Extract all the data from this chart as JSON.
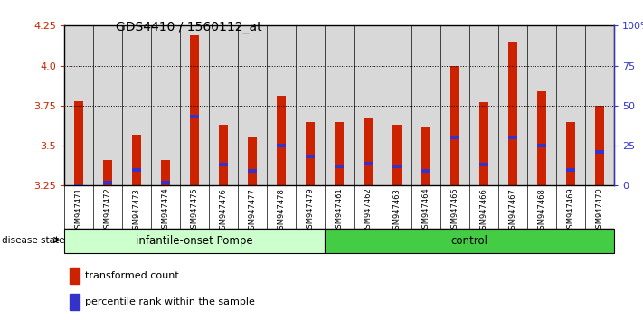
{
  "title": "GDS4410 / 1560112_at",
  "samples": [
    "GSM947471",
    "GSM947472",
    "GSM947473",
    "GSM947474",
    "GSM947475",
    "GSM947476",
    "GSM947477",
    "GSM947478",
    "GSM947479",
    "GSM947461",
    "GSM947462",
    "GSM947463",
    "GSM947464",
    "GSM947465",
    "GSM947466",
    "GSM947467",
    "GSM947468",
    "GSM947469",
    "GSM947470"
  ],
  "red_values": [
    3.78,
    3.41,
    3.57,
    3.41,
    4.19,
    3.63,
    3.55,
    3.81,
    3.65,
    3.65,
    3.67,
    3.63,
    3.62,
    4.0,
    3.77,
    4.15,
    3.84,
    3.65,
    3.75
  ],
  "blue_values": [
    3.25,
    3.27,
    3.35,
    3.27,
    3.68,
    3.38,
    3.34,
    3.5,
    3.43,
    3.37,
    3.39,
    3.37,
    3.34,
    3.55,
    3.38,
    3.55,
    3.5,
    3.35,
    3.46
  ],
  "ymin": 3.25,
  "ymax": 4.25,
  "y_ticks": [
    3.25,
    3.5,
    3.75,
    4.0,
    4.25
  ],
  "y_ticks_right": [
    0,
    25,
    50,
    75,
    100
  ],
  "group1_label": "infantile-onset Pompe",
  "group2_label": "control",
  "group1_count": 9,
  "group2_count": 10,
  "disease_state_label": "disease state",
  "legend_red": "transformed count",
  "legend_blue": "percentile rank within the sample",
  "red_color": "#cc2200",
  "blue_color": "#3333cc",
  "group1_bg": "#ccffcc",
  "group2_bg": "#44cc44",
  "bar_bg": "#d8d8d8",
  "left_axis_color": "#cc2200",
  "right_axis_color": "#3333cc",
  "grid_color": "#000000"
}
